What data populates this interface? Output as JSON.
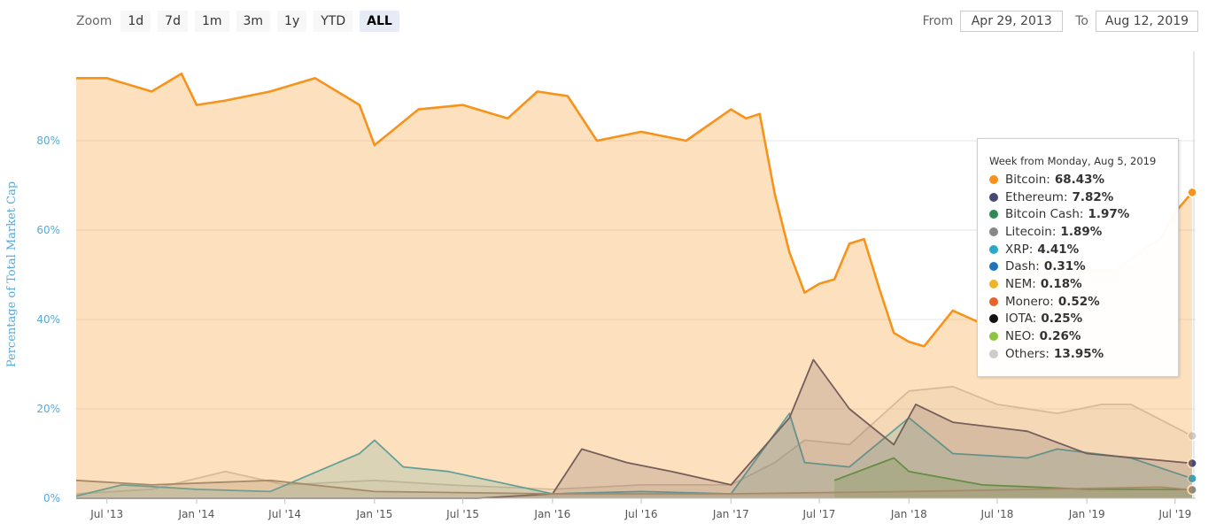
{
  "toolbar": {
    "zoom_label": "Zoom",
    "zoom_buttons": [
      "1d",
      "7d",
      "1m",
      "3m",
      "1y",
      "YTD",
      "ALL"
    ],
    "active_zoom": "ALL",
    "from_label": "From",
    "from_value": "Apr 29, 2013",
    "to_label": "To",
    "to_value": "Aug 12, 2019"
  },
  "tooltip": {
    "title": "Week from Monday, Aug 5, 2019",
    "items": [
      {
        "name": "Bitcoin",
        "value": "68.43%",
        "color": "#f7931a"
      },
      {
        "name": "Ethereum",
        "value": "7.82%",
        "color": "#454a75"
      },
      {
        "name": "Bitcoin Cash",
        "value": "1.97%",
        "color": "#2e8b57"
      },
      {
        "name": "Litecoin",
        "value": "1.89%",
        "color": "#888888"
      },
      {
        "name": "XRP",
        "value": "4.41%",
        "color": "#2aa7c9"
      },
      {
        "name": "Dash",
        "value": "0.31%",
        "color": "#1c75bc"
      },
      {
        "name": "NEM",
        "value": "0.18%",
        "color": "#f0b429"
      },
      {
        "name": "Monero",
        "value": "0.52%",
        "color": "#e8622c"
      },
      {
        "name": "IOTA",
        "value": "0.25%",
        "color": "#111111"
      },
      {
        "name": "NEO",
        "value": "0.26%",
        "color": "#8cc63f"
      },
      {
        "name": "Others",
        "value": "13.95%",
        "color": "#cccccc"
      }
    ]
  },
  "chart_data": {
    "type": "area",
    "ylabel": "Percentage of Total Market Cap",
    "ylim": [
      0,
      100
    ],
    "y_ticks": [
      0,
      20,
      40,
      60,
      80
    ],
    "y_tick_labels": [
      "0%",
      "20%",
      "40%",
      "60%",
      "80%"
    ],
    "x_range": [
      "2013-04-29",
      "2019-08-12"
    ],
    "x_ticks": [
      "2013-07-01",
      "2014-01-01",
      "2014-07-01",
      "2015-01-01",
      "2015-07-01",
      "2016-01-01",
      "2016-07-01",
      "2017-01-01",
      "2017-07-01",
      "2018-01-01",
      "2018-07-01",
      "2019-01-01",
      "2019-07-01"
    ],
    "x_tick_labels": [
      "Jul '13",
      "Jan '14",
      "Jul '14",
      "Jan '15",
      "Jul '15",
      "Jan '16",
      "Jul '16",
      "Jan '17",
      "Jul '17",
      "Jan '18",
      "Jul '18",
      "Jan '19",
      "Jul '19"
    ],
    "series": [
      {
        "name": "Others",
        "color": "#cccccc",
        "x": [
          "2013-04-29",
          "2013-10-01",
          "2014-03-01",
          "2014-07-01",
          "2015-01-01",
          "2015-06-01",
          "2016-01-01",
          "2016-07-01",
          "2017-01-01",
          "2017-04-01",
          "2017-06-01",
          "2017-09-01",
          "2018-01-01",
          "2018-04-01",
          "2018-07-01",
          "2018-11-01",
          "2019-02-01",
          "2019-04-01",
          "2019-08-05"
        ],
        "y": [
          1,
          2,
          6,
          3,
          4,
          3,
          2,
          3,
          3,
          8,
          13,
          12,
          24,
          25,
          21,
          19,
          21,
          21,
          13.95
        ]
      },
      {
        "name": "XRP",
        "color": "#2aa7c9",
        "x": [
          "2013-04-29",
          "2013-08-01",
          "2014-01-01",
          "2014-06-01",
          "2014-12-01",
          "2015-01-01",
          "2015-03-01",
          "2015-06-01",
          "2016-01-01",
          "2016-07-01",
          "2017-01-01",
          "2017-05-01",
          "2017-06-01",
          "2017-09-01",
          "2018-01-01",
          "2018-04-01",
          "2018-09-01",
          "2018-11-01",
          "2019-04-01",
          "2019-08-05"
        ],
        "y": [
          0.5,
          3,
          2,
          1.5,
          10,
          13,
          7,
          6,
          1,
          1.5,
          1,
          19,
          8,
          7,
          18,
          10,
          9,
          11,
          9,
          4.41
        ]
      },
      {
        "name": "Ethereum",
        "color": "#454a75",
        "x": [
          "2013-04-29",
          "2015-08-01",
          "2016-01-01",
          "2016-03-01",
          "2016-06-01",
          "2016-09-01",
          "2017-01-01",
          "2017-05-01",
          "2017-06-19",
          "2017-09-01",
          "2017-12-01",
          "2018-01-15",
          "2018-04-01",
          "2018-09-01",
          "2019-01-01",
          "2019-08-05"
        ],
        "y": [
          0,
          0,
          1,
          11,
          8,
          6,
          3,
          18,
          31,
          20,
          12,
          21,
          17,
          15,
          10,
          7.82
        ]
      },
      {
        "name": "Bitcoin Cash",
        "color": "#2e8b57",
        "x": [
          "2017-08-01",
          "2017-12-01",
          "2018-01-01",
          "2018-06-01",
          "2019-01-01",
          "2019-08-05"
        ],
        "y": [
          4,
          9,
          6,
          3,
          2,
          1.97
        ]
      },
      {
        "name": "Litecoin",
        "color": "#888888",
        "x": [
          "2013-04-29",
          "2013-10-01",
          "2014-06-01",
          "2015-01-01",
          "2016-01-01",
          "2017-01-01",
          "2018-01-01",
          "2019-06-01",
          "2019-08-05"
        ],
        "y": [
          4,
          3,
          4,
          1.5,
          1,
          1,
          1.5,
          2.5,
          1.89
        ]
      },
      {
        "name": "Bitcoin",
        "color": "#f7931a",
        "x": [
          "2013-04-29",
          "2013-07-01",
          "2013-10-01",
          "2013-12-01",
          "2014-01-01",
          "2014-03-01",
          "2014-06-01",
          "2014-09-01",
          "2014-12-01",
          "2015-01-01",
          "2015-04-01",
          "2015-07-01",
          "2015-10-01",
          "2015-12-01",
          "2016-02-01",
          "2016-04-01",
          "2016-07-01",
          "2016-10-01",
          "2017-01-01",
          "2017-02-01",
          "2017-03-01",
          "2017-04-01",
          "2017-05-01",
          "2017-06-01",
          "2017-07-01",
          "2017-08-01",
          "2017-09-01",
          "2017-10-01",
          "2017-11-01",
          "2017-12-01",
          "2018-01-01",
          "2018-02-01",
          "2018-04-01",
          "2018-06-01",
          "2018-09-01",
          "2018-10-01",
          "2019-01-01",
          "2019-03-01",
          "2019-05-01",
          "2019-06-01",
          "2019-07-01",
          "2019-08-05"
        ],
        "y": [
          94,
          94,
          91,
          95,
          88,
          89,
          91,
          94,
          88,
          79,
          87,
          88,
          85,
          91,
          90,
          80,
          82,
          80,
          87,
          85,
          86,
          68,
          55,
          46,
          48,
          49,
          57,
          58,
          47,
          37,
          35,
          34,
          42,
          39,
          53,
          53,
          51,
          51,
          56,
          58,
          64,
          68.43
        ]
      }
    ]
  }
}
